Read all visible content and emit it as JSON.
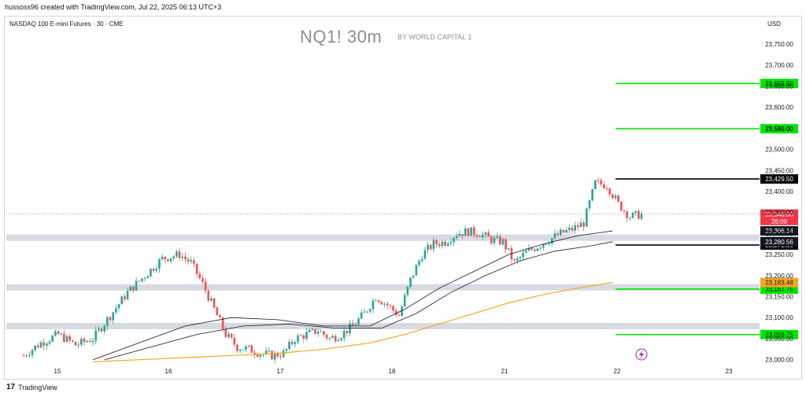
{
  "header": {
    "attribution": "hussoss96 created with TradingView.com, Jul 22, 2025 06:13 UTC+3",
    "symbol_desc": "NASDAQ 100 E-mini Futures · 30 · CME",
    "watermark": "NQ1! 30m",
    "watermark_sub": "BY WORLD CAPITAL 1",
    "currency": "USD"
  },
  "footer": {
    "brand": "TradingView",
    "logo": "17"
  },
  "colors": {
    "up": "#26a69a",
    "down": "#ef5350",
    "level_green": "#00e600",
    "level_black": "#000000",
    "ema_orange": "#f7a623",
    "zone_gray": "#d1d4dc",
    "price_red": "#f23645"
  },
  "chart_data": {
    "type": "candlestick",
    "x_ticks": [
      "15",
      "16",
      "17",
      "18",
      "21",
      "22",
      "23"
    ],
    "y_ticks": [
      23000,
      23050,
      23100,
      23150,
      23200,
      23250,
      23300,
      23350,
      23400,
      23450,
      23500,
      23550,
      23600,
      23650,
      23700,
      23750
    ],
    "ylim": [
      22990,
      23780
    ],
    "close_path": [
      [
        0,
        23010
      ],
      [
        3,
        23040
      ],
      [
        6,
        23060
      ],
      [
        9,
        23035
      ],
      [
        12,
        23050
      ],
      [
        15,
        23105
      ],
      [
        18,
        23160
      ],
      [
        21,
        23200
      ],
      [
        24,
        23240
      ],
      [
        27,
        23250
      ],
      [
        29,
        23230
      ],
      [
        31,
        23180
      ],
      [
        33,
        23120
      ],
      [
        35,
        23060
      ],
      [
        37,
        23030
      ],
      [
        39,
        23025
      ],
      [
        41,
        23015
      ],
      [
        43,
        23010
      ],
      [
        45,
        23015
      ],
      [
        47,
        23050
      ],
      [
        49,
        23060
      ],
      [
        51,
        23070
      ],
      [
        53,
        23050
      ],
      [
        55,
        23060
      ],
      [
        57,
        23080
      ],
      [
        59,
        23110
      ],
      [
        61,
        23150
      ],
      [
        63,
        23130
      ],
      [
        65,
        23105
      ],
      [
        67,
        23190
      ],
      [
        69,
        23250
      ],
      [
        71,
        23275
      ],
      [
        73,
        23280
      ],
      [
        75,
        23300
      ],
      [
        77,
        23305
      ],
      [
        79,
        23300
      ],
      [
        81,
        23285
      ],
      [
        83,
        23280
      ],
      [
        85,
        23230
      ],
      [
        87,
        23255
      ],
      [
        89,
        23270
      ],
      [
        91,
        23285
      ],
      [
        93,
        23300
      ],
      [
        95,
        23310
      ],
      [
        97,
        23325
      ],
      [
        99,
        23420
      ],
      [
        101,
        23415
      ],
      [
        103,
        23370
      ],
      [
        105,
        23340
      ],
      [
        107,
        23346
      ]
    ],
    "series": [
      {
        "name": "",
        "type": "ma",
        "color": "#131722",
        "points": [
          [
            12,
            23000
          ],
          [
            20,
            23040
          ],
          [
            28,
            23080
          ],
          [
            36,
            23100
          ],
          [
            44,
            23095
          ],
          [
            52,
            23080
          ],
          [
            60,
            23080
          ],
          [
            66,
            23120
          ],
          [
            72,
            23170
          ],
          [
            78,
            23210
          ],
          [
            84,
            23250
          ],
          [
            90,
            23275
          ],
          [
            96,
            23295
          ],
          [
            102,
            23306
          ]
        ]
      },
      {
        "name": "",
        "type": "ma",
        "color": "#131722",
        "points": [
          [
            14,
            23000
          ],
          [
            22,
            23030
          ],
          [
            30,
            23060
          ],
          [
            38,
            23080
          ],
          [
            46,
            23085
          ],
          [
            54,
            23075
          ],
          [
            62,
            23075
          ],
          [
            68,
            23110
          ],
          [
            74,
            23160
          ],
          [
            80,
            23200
          ],
          [
            86,
            23235
          ],
          [
            92,
            23258
          ],
          [
            98,
            23270
          ],
          [
            102,
            23280.56
          ]
        ]
      },
      {
        "name": "",
        "type": "ema",
        "color": "#f7a623",
        "points": [
          [
            12,
            22995
          ],
          [
            20,
            23000
          ],
          [
            28,
            23005
          ],
          [
            36,
            23010
          ],
          [
            44,
            23015
          ],
          [
            52,
            23025
          ],
          [
            60,
            23040
          ],
          [
            66,
            23060
          ],
          [
            72,
            23085
          ],
          [
            78,
            23110
          ],
          [
            84,
            23135
          ],
          [
            90,
            23155
          ],
          [
            96,
            23170
          ],
          [
            102,
            23183.48
          ]
        ]
      }
    ],
    "levels": [
      {
        "price": "23,656.50",
        "value": 23656.5,
        "color": "#00e600"
      },
      {
        "price": "23,549.00",
        "value": 23549,
        "color": "#00e600"
      },
      {
        "price": "23,429.50",
        "value": 23429.5,
        "color": "#000000"
      },
      {
        "price": "23,272.50",
        "value": 23272.5,
        "color": "#000000"
      },
      {
        "price": "23,167.75",
        "value": 23167.75,
        "color": "#00e600"
      },
      {
        "price": "23,059.75",
        "value": 23059.75,
        "color": "#00e600"
      }
    ],
    "zones": [
      23290,
      23172,
      23080
    ],
    "price_tags": [
      {
        "label": "23,346.00",
        "sub": "26:09",
        "value": 23346,
        "bg": "#f23645",
        "fg": "#ffffff"
      },
      {
        "label": "23,306.14",
        "value": 23306.14,
        "bg": "#131722",
        "fg": "#ffffff"
      },
      {
        "label": "23,280.56",
        "value": 23280.56,
        "bg": "#131722",
        "fg": "#ffffff"
      },
      {
        "label": "23,183.48",
        "value": 23183.48,
        "bg": "#f7a623",
        "fg": "#131722"
      }
    ],
    "last_price": 23346
  }
}
